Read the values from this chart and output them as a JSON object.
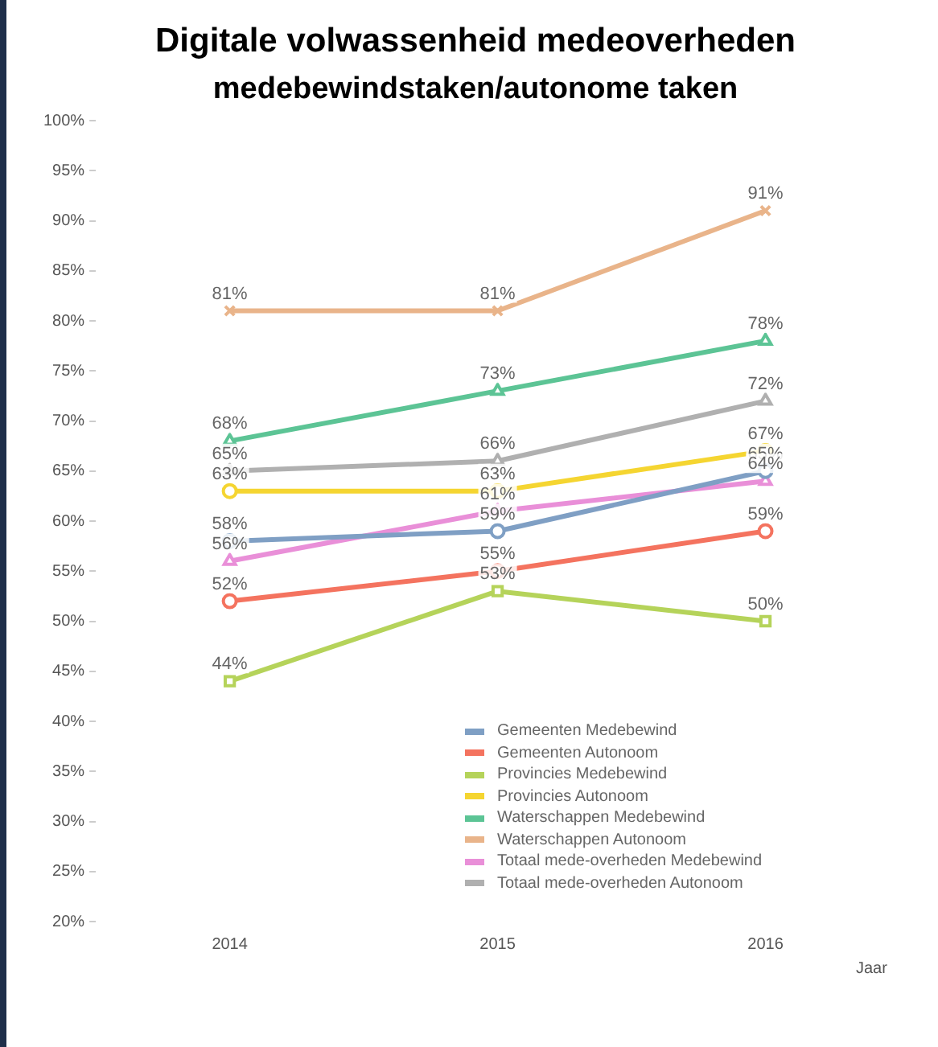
{
  "chart_data": {
    "type": "line",
    "title": "Digitale volwassenheid medeoverheden",
    "subtitle": "medebewindstaken/autonome taken",
    "xlabel": "Jaar",
    "categories": [
      "2014",
      "2015",
      "2016"
    ],
    "ylim": [
      20,
      100
    ],
    "yticks": [
      {
        "value": 20,
        "label": "20%"
      },
      {
        "value": 25,
        "label": "25%"
      },
      {
        "value": 30,
        "label": "30%"
      },
      {
        "value": 35,
        "label": "35%"
      },
      {
        "value": 40,
        "label": "40%"
      },
      {
        "value": 45,
        "label": "45%"
      },
      {
        "value": 50,
        "label": "50%"
      },
      {
        "value": 55,
        "label": "55%"
      },
      {
        "value": 60,
        "label": "60%"
      },
      {
        "value": 65,
        "label": "65%"
      },
      {
        "value": 70,
        "label": "70%"
      },
      {
        "value": 75,
        "label": "75%"
      },
      {
        "value": 80,
        "label": "80%"
      },
      {
        "value": 85,
        "label": "85%"
      },
      {
        "value": 90,
        "label": "90%"
      },
      {
        "value": 95,
        "label": "95%"
      },
      {
        "value": 100,
        "label": "100%"
      }
    ],
    "grid": false,
    "legend": "bottom",
    "line_style": "solid",
    "series": [
      {
        "name": "Gemeenten Medebewind",
        "color": "#7f9fc4",
        "marker": "circle",
        "values": [
          58,
          59,
          65
        ],
        "value_labels": [
          "58%",
          "59%",
          "65%"
        ]
      },
      {
        "name": "Gemeenten Autonoom",
        "color": "#f4735f",
        "marker": "circle",
        "values": [
          52,
          55,
          59
        ],
        "value_labels": [
          "52%",
          "55%",
          "59%"
        ]
      },
      {
        "name": "Provincies Medebewind",
        "color": "#b5d35a",
        "marker": "square",
        "values": [
          44,
          53,
          50
        ],
        "value_labels": [
          "44%",
          "53%",
          "50%"
        ]
      },
      {
        "name": "Provincies Autonoom",
        "color": "#f5d531",
        "marker": "circle",
        "values": [
          63,
          63,
          67
        ],
        "value_labels": [
          "63%",
          "63%",
          "67%"
        ]
      },
      {
        "name": "Waterschappen Medebewind",
        "color": "#5cc495",
        "marker": "triangle",
        "values": [
          68,
          73,
          78
        ],
        "value_labels": [
          "68%",
          "73%",
          "78%"
        ]
      },
      {
        "name": "Waterschappen Autonoom",
        "color": "#e9b48a",
        "marker": "cross",
        "values": [
          81,
          81,
          91
        ],
        "value_labels": [
          "81%",
          "81%",
          "91%"
        ]
      },
      {
        "name": "Totaal mede-overheden Medebewind",
        "color": "#e98fd8",
        "marker": "triangle",
        "values": [
          56,
          61,
          64
        ],
        "value_labels": [
          "56%",
          "61%",
          "64%"
        ]
      },
      {
        "name": "Totaal mede-overheden Autonoom",
        "color": "#b0b0b0",
        "marker": "triangle",
        "values": [
          65,
          66,
          72
        ],
        "value_labels": [
          "65%",
          "66%",
          "72%"
        ]
      }
    ]
  }
}
